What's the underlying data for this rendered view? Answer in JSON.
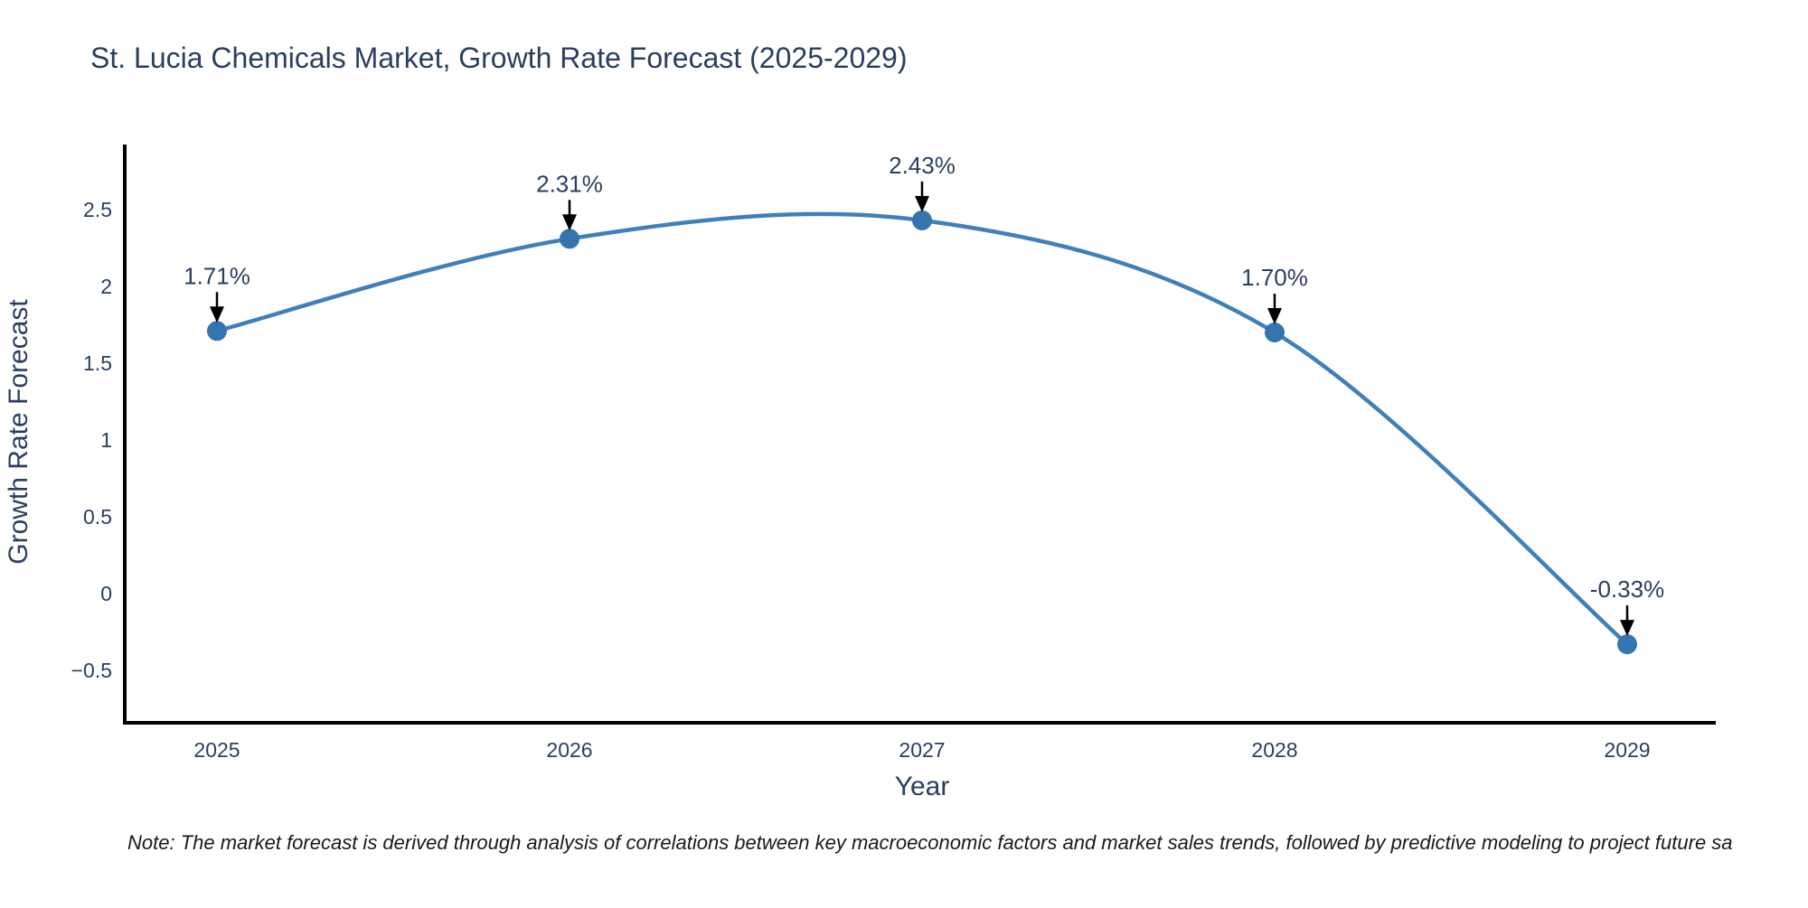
{
  "note": "Note: The market forecast is derived through analysis of correlations between key macroeconomic factors and market sales trends, followed by predictive modeling to project future sa",
  "chart_data": {
    "type": "line",
    "title": "St. Lucia Chemicals Market, Growth Rate Forecast (2025-2029)",
    "curve": "spline",
    "grid": false,
    "legend_position": "none",
    "categories": [
      "2025",
      "2026",
      "2027",
      "2028",
      "2029"
    ],
    "x": [
      2025,
      2026,
      2027,
      2028,
      2029
    ],
    "series": [
      {
        "name": "Growth Rate Forecast",
        "values": [
          1.71,
          2.31,
          2.43,
          1.7,
          -0.33
        ]
      }
    ],
    "point_labels": [
      "1.71%",
      "2.31%",
      "2.43%",
      "1.70%",
      "-0.33%"
    ],
    "xlabel": "Year",
    "ylabel": "Growth Rate Forecast",
    "ylim": [
      -0.84,
      2.92
    ],
    "yticks": [
      2.5,
      2,
      1.5,
      1,
      0.5,
      0,
      -0.5
    ],
    "ytick_labels": [
      "2.5",
      "2",
      "1.5",
      "1",
      "0.5",
      "0",
      "−0.5"
    ],
    "line_color": "#3f80ba",
    "marker_color": "#3674ae",
    "annotation_arrow_color": "#000000",
    "axis_line_color": "#000000",
    "text_color": "#2a3f5f"
  }
}
